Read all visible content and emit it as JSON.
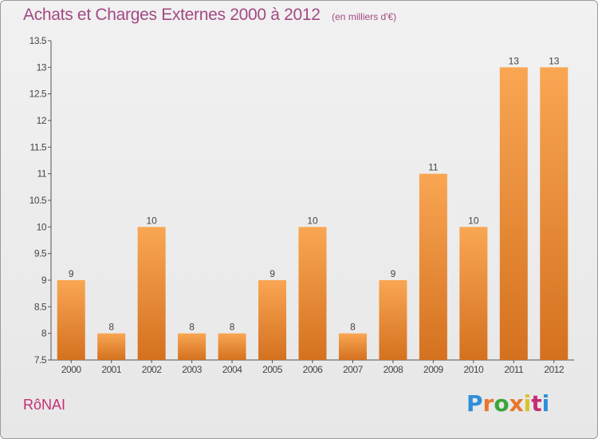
{
  "header": {
    "title": "Achats et Charges Externes 2000 à 2012",
    "unit": "(en milliers d'€)"
  },
  "footer": {
    "commune": "RôNAI",
    "brand": "Proxiti",
    "brand_colors": [
      "#2f8fd8",
      "#e8762c",
      "#3aa53a",
      "#e8762c",
      "#d8c22a",
      "#c42e76",
      "#2f8fd8"
    ]
  },
  "colors": {
    "bar_top": "#f9a653",
    "bar_bottom": "#d4711f",
    "axis": "#555555",
    "grid": "#cfcfcf",
    "title": "#a24a84"
  },
  "chart_data": {
    "type": "bar",
    "title": "Achats et Charges Externes 2000 à 2012",
    "xlabel": "",
    "ylabel": "",
    "categories": [
      "2000",
      "2001",
      "2002",
      "2003",
      "2004",
      "2005",
      "2006",
      "2007",
      "2008",
      "2009",
      "2010",
      "2011",
      "2012"
    ],
    "values": [
      9,
      8,
      10,
      8,
      8,
      9,
      10,
      8,
      9,
      11,
      10,
      13,
      13
    ],
    "ylim": [
      7.5,
      13.5
    ],
    "yticks": [
      7.5,
      8,
      8.5,
      9,
      9.5,
      10,
      10.5,
      11,
      11.5,
      12,
      12.5,
      13,
      13.5
    ],
    "ytick_labels": [
      "7.5",
      "8",
      "8.5",
      "9",
      "9.5",
      "10",
      "10.5",
      "11",
      "11.5",
      "12",
      "12.5",
      "13",
      "13.5"
    ],
    "data_labels": [
      "9",
      "8",
      "10",
      "8",
      "8",
      "9",
      "10",
      "8",
      "9",
      "11",
      "10",
      "13",
      "13"
    ],
    "grid": false
  }
}
